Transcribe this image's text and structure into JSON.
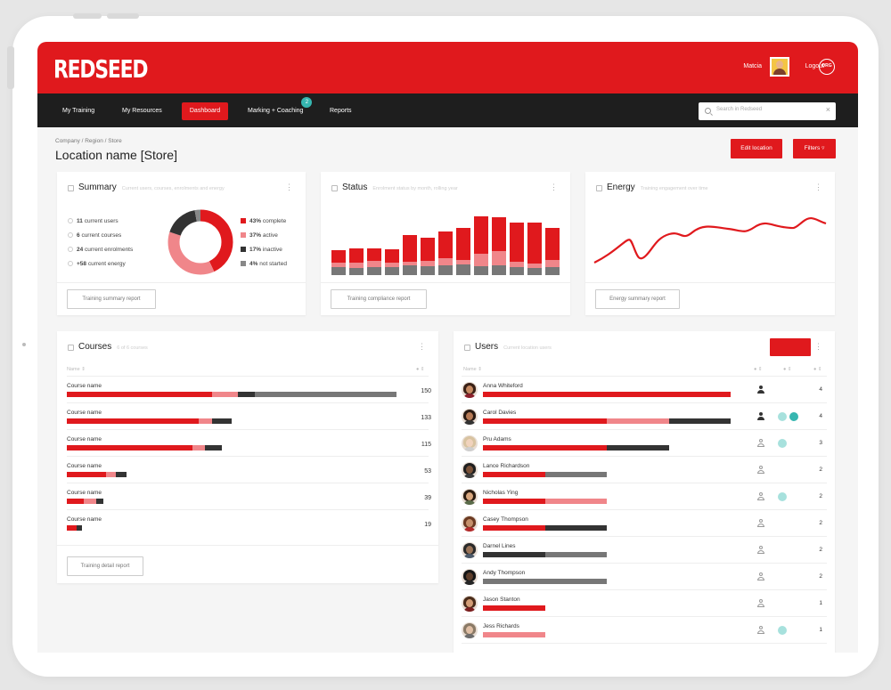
{
  "app": {
    "logo": "REDSEED"
  },
  "topbar": {
    "user_name": "Matcia",
    "logout_label": "Logout",
    "org_badge": "ORG"
  },
  "nav": {
    "items": [
      {
        "label": "My Training",
        "active": false
      },
      {
        "label": "My Resources",
        "active": false
      },
      {
        "label": "Dashboard",
        "active": true
      },
      {
        "label": "Marking + Coaching",
        "active": false,
        "badge": "2"
      },
      {
        "label": "Reports",
        "active": false
      }
    ],
    "search_placeholder": "Search in Redseed"
  },
  "page": {
    "breadcrumb": "Company  /  Region  /  Store",
    "title": "Location name [Store]",
    "edit_button": "Edit location",
    "filters_button": "Filters"
  },
  "summary_card": {
    "title": "Summary",
    "subtitle": "Current users, courses, enrolments and energy",
    "stats": [
      {
        "value": "11",
        "label": "current users"
      },
      {
        "value": "6",
        "label": "current courses"
      },
      {
        "value": "24",
        "label": "current enrolments"
      },
      {
        "value": "+58",
        "label": "current energy"
      }
    ],
    "legend": [
      {
        "value": "43%",
        "label": "complete",
        "color": "#e0191d"
      },
      {
        "value": "37%",
        "label": "active",
        "color": "#f0868a"
      },
      {
        "value": "17%",
        "label": "inactive",
        "color": "#333333"
      },
      {
        "value": "4%",
        "label": "not started",
        "color": "#888888"
      }
    ],
    "report_button": "Training summary report"
  },
  "status_card": {
    "title": "Status",
    "subtitle": "Enrolment status by month, rolling year",
    "report_button": "Training compliance report"
  },
  "energy_card": {
    "title": "Energy",
    "subtitle": "Training engagement over time",
    "report_button": "Energy summary report"
  },
  "courses_card": {
    "title": "Courses",
    "subtitle": "6 of 6 courses",
    "col_name": "Name",
    "col_count": "",
    "report_button": "Training detail report",
    "rows": [
      {
        "name": "Course name",
        "count": "150",
        "segments": [
          0.44,
          0.08,
          0.05,
          0.43
        ]
      },
      {
        "name": "Course name",
        "count": "133",
        "segments": [
          0.4,
          0.04,
          0.06,
          0.0
        ]
      },
      {
        "name": "Course name",
        "count": "115",
        "segments": [
          0.38,
          0.04,
          0.05,
          0.0
        ]
      },
      {
        "name": "Course name",
        "count": "53",
        "segments": [
          0.12,
          0.03,
          0.03,
          0.0
        ]
      },
      {
        "name": "Course name",
        "count": "39",
        "segments": [
          0.05,
          0.04,
          0.02,
          0.0
        ]
      },
      {
        "name": "Course name",
        "count": "19",
        "segments": [
          0.03,
          0.0,
          0.015,
          0.0
        ]
      }
    ]
  },
  "users_card": {
    "title": "Users",
    "subtitle": "Current location users",
    "col_name": "Name",
    "rows": [
      {
        "name": "Anna Whiteford",
        "count": "4",
        "role": "solid",
        "badges": [],
        "segments": [
          1.0,
          0,
          0,
          0
        ],
        "avatar": [
          "#3a2116",
          "#c68a62",
          "#8a1f2b"
        ]
      },
      {
        "name": "Carol Davies",
        "count": "4",
        "role": "solid",
        "badges": [
          "light",
          "dark"
        ],
        "segments": [
          0.5,
          0.25,
          0.25,
          0
        ],
        "avatar": [
          "#2a1a12",
          "#b77a55",
          "#333333"
        ]
      },
      {
        "name": "Pru Adams",
        "count": "3",
        "role": "line",
        "badges": [
          "light"
        ],
        "segments": [
          0.5,
          0,
          0.25,
          0
        ],
        "avatar": [
          "#d8c3a0",
          "#f1d3bd",
          "#cfcfcf"
        ]
      },
      {
        "name": "Lance Richardson",
        "count": "2",
        "role": "line",
        "badges": [],
        "segments": [
          0.25,
          0,
          0,
          0.25
        ],
        "avatar": [
          "#1f1f1f",
          "#7a5238",
          "#3b3b3b"
        ]
      },
      {
        "name": "Nicholas Ying",
        "count": "2",
        "role": "line",
        "badges": [
          "light"
        ],
        "segments": [
          0.25,
          0.25,
          0,
          0
        ],
        "avatar": [
          "#2b1b10",
          "#d9a77e",
          "#5a6b4a"
        ]
      },
      {
        "name": "Casey Thompson",
        "count": "2",
        "role": "line",
        "badges": [],
        "segments": [
          0.25,
          0,
          0.25,
          0
        ],
        "avatar": [
          "#6b3a22",
          "#c5906b",
          "#b22a2a"
        ]
      },
      {
        "name": "Darnel Lines",
        "count": "2",
        "role": "line",
        "badges": [],
        "segments": [
          0,
          0,
          0.25,
          0.25
        ],
        "avatar": [
          "#2a2a2a",
          "#9a7458",
          "#4c5a6a"
        ]
      },
      {
        "name": "Andy Thompson",
        "count": "2",
        "role": "line",
        "badges": [],
        "segments": [
          0,
          0,
          0,
          0.5
        ],
        "avatar": [
          "#161616",
          "#5d3d2a",
          "#262626"
        ]
      },
      {
        "name": "Jason Stanton",
        "count": "1",
        "role": "line",
        "badges": [],
        "segments": [
          0.25,
          0,
          0,
          0
        ],
        "avatar": [
          "#4a2c1a",
          "#d39d76",
          "#7a1e1e"
        ]
      },
      {
        "name": "Jess Richards",
        "count": "1",
        "role": "line",
        "badges": [
          "light"
        ],
        "segments": [
          0,
          0.25,
          0,
          0
        ],
        "avatar": [
          "#8a7a66",
          "#e0bfa5",
          "#6d6d6d"
        ]
      }
    ]
  },
  "colors": {
    "brand_red": "#e0191d",
    "pink": "#f0868a",
    "dark": "#333333",
    "grey": "#777777",
    "teal": "#36b6b0",
    "nav_bg": "#1e1e1e"
  }
}
